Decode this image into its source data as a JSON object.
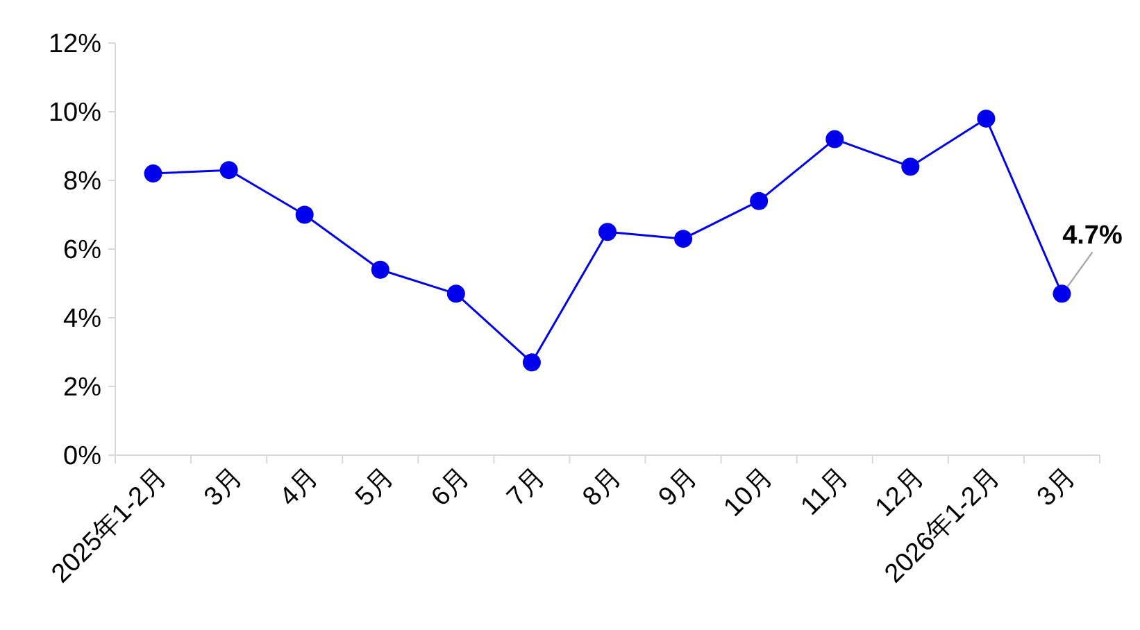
{
  "chart_data": {
    "type": "line",
    "categories": [
      "2025年1-2月",
      "3月",
      "4月",
      "5月",
      "6月",
      "7月",
      "8月",
      "9月",
      "10月",
      "11月",
      "12月",
      "2026年1-2月",
      "3月"
    ],
    "series": [
      {
        "color": "#0000ee",
        "values": [
          8.2,
          8.3,
          7.0,
          5.4,
          4.7,
          2.7,
          6.5,
          6.3,
          7.4,
          9.2,
          8.4,
          9.8,
          4.7
        ],
        "value_labels": [
          null,
          null,
          null,
          null,
          null,
          null,
          null,
          null,
          null,
          null,
          null,
          null,
          "4.7%"
        ]
      }
    ],
    "ylim": [
      0,
      12
    ],
    "yticks": [
      {
        "value": 0,
        "label": "0%"
      },
      {
        "value": 2,
        "label": "2%"
      },
      {
        "value": 4,
        "label": "4%"
      },
      {
        "value": 6,
        "label": "6%"
      },
      {
        "value": 8,
        "label": "8%"
      },
      {
        "value": 10,
        "label": "10%"
      },
      {
        "value": 12,
        "label": "12%"
      }
    ],
    "grid": false,
    "marker": "circle",
    "line_style": "solid"
  }
}
